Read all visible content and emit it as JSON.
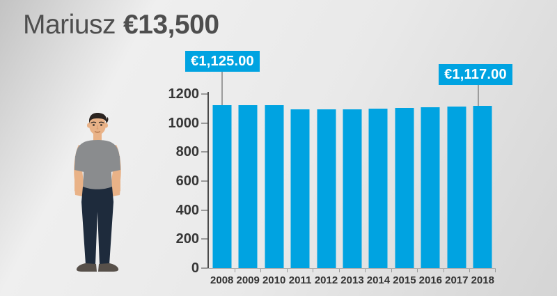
{
  "title": {
    "name": "Mariusz",
    "amount": "€13,500"
  },
  "callouts": {
    "first_year": "€1,125.00",
    "last_year": "€1,117.00"
  },
  "chart_data": {
    "type": "bar",
    "categories": [
      "2008",
      "2009",
      "2010",
      "2011",
      "2012",
      "2013",
      "2014",
      "2015",
      "2016",
      "2017",
      "2018"
    ],
    "values": [
      1125,
      1125,
      1125,
      1096,
      1096,
      1096,
      1098,
      1103,
      1108,
      1112,
      1117
    ],
    "annotations": [
      {
        "category": "2008",
        "value": 1125.0,
        "label": "€1,125.00"
      },
      {
        "category": "2018",
        "value": 1117.0,
        "label": "€1,117.00"
      }
    ],
    "title": "Mariusz €13,500",
    "xlabel": "",
    "ylabel": "",
    "ylim": [
      0,
      1200
    ],
    "yticks": [
      0,
      200,
      400,
      600,
      800,
      1000,
      1200
    ],
    "grid": false,
    "legend": null,
    "bar_color": "#00a3e1"
  },
  "colors": {
    "accent": "#00a3e1",
    "title_text": "#4e4e4e",
    "axis_text": "#363636",
    "axis_line": "#4a4a4a",
    "tick": "#9a9a9a",
    "connector": "#9c9c9c",
    "callout_text": "#ffffff",
    "bg_dark": "#c3c3c3",
    "bg_light": "#efefef",
    "bg_mid": "#d5d5d5",
    "shirt": "#8a8c8e",
    "pants": "#1e2b3c",
    "skin": "#e9b287",
    "hair": "#2b2420",
    "shoes": "#57504a"
  }
}
